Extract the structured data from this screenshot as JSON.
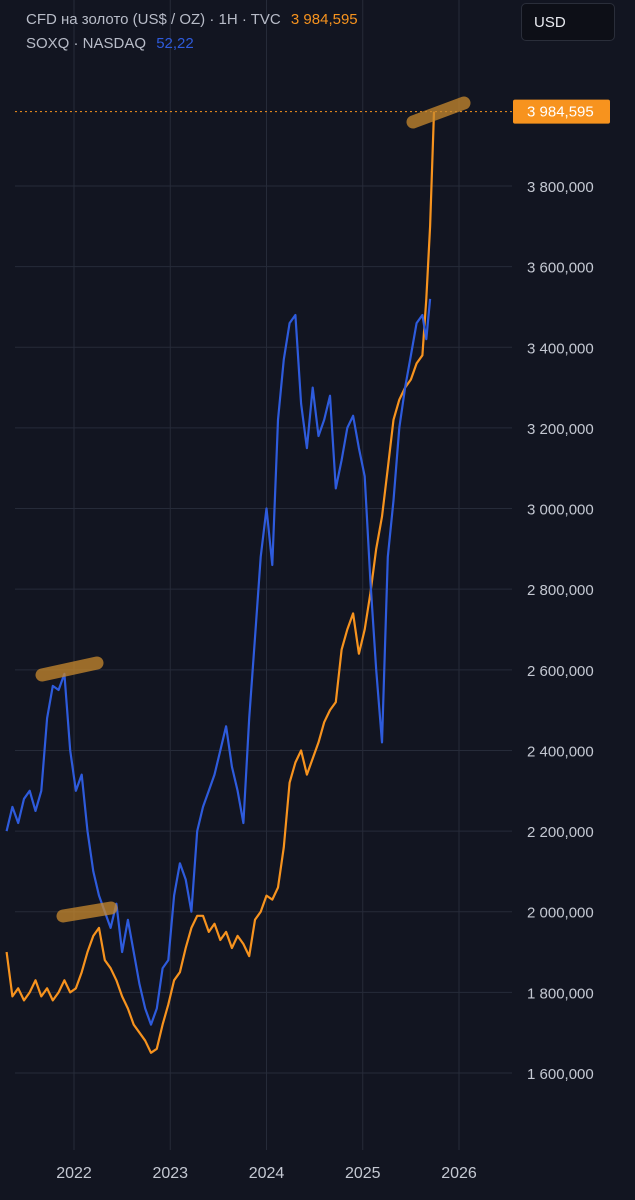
{
  "legend": {
    "gold": {
      "name": "CFD на золото (US$ / OZ) · 1H · TVC",
      "value": "3 984,595",
      "color": "#f7931e"
    },
    "soxq": {
      "name": "SOXQ · NASDAQ",
      "value": "52,22",
      "color": "#2e5bdc"
    }
  },
  "currency_button": {
    "label": "USD"
  },
  "price_label": "3 984,595",
  "chart_data": {
    "type": "line",
    "ylabels": [
      "3 800,000",
      "3 600,000",
      "3 400,000",
      "3 200,000",
      "3 000,000",
      "2 800,000",
      "2 600,000",
      "2 400,000",
      "2 200,000",
      "2 000,000",
      "1 800,000",
      "1 600,000"
    ],
    "y_ticks": [
      3800000,
      3600000,
      3400000,
      3200000,
      3000000,
      2800000,
      2600000,
      2400000,
      2200000,
      2000000,
      1800000,
      1600000
    ],
    "x_ticks": [
      "2022",
      "2023",
      "2024",
      "2025",
      "2026"
    ],
    "last_price": 3984595,
    "grid": true,
    "colors": {
      "gold": "#f7931e",
      "soxq": "#2e5bdc",
      "grid": "#262b39",
      "highlight": "#c98a2e"
    },
    "series": [
      {
        "name": "CFD на золото (US$ / OZ) · 1H · TVC",
        "color": "#f7931e",
        "x": [
          2021.3,
          2021.36,
          2021.42,
          2021.48,
          2021.54,
          2021.6,
          2021.66,
          2021.72,
          2021.78,
          2021.84,
          2021.9,
          2021.96,
          2022.02,
          2022.08,
          2022.14,
          2022.2,
          2022.26,
          2022.32,
          2022.38,
          2022.44,
          2022.5,
          2022.56,
          2022.62,
          2022.68,
          2022.74,
          2022.8,
          2022.86,
          2022.92,
          2022.98,
          2023.04,
          2023.1,
          2023.16,
          2023.22,
          2023.28,
          2023.34,
          2023.4,
          2023.46,
          2023.52,
          2023.58,
          2023.64,
          2023.7,
          2023.76,
          2023.82,
          2023.88,
          2023.94,
          2024.0,
          2024.06,
          2024.12,
          2024.18,
          2024.24,
          2024.3,
          2024.36,
          2024.42,
          2024.48,
          2024.54,
          2024.6,
          2024.66,
          2024.72,
          2024.78,
          2024.84,
          2024.9,
          2024.96,
          2025.02,
          2025.08,
          2025.14,
          2025.2,
          2025.26,
          2025.32,
          2025.38,
          2025.44,
          2025.5,
          2025.56,
          2025.62,
          2025.66,
          2025.7,
          2025.74
        ],
        "y": [
          1900000,
          1790000,
          1810000,
          1780000,
          1800000,
          1830000,
          1790000,
          1810000,
          1780000,
          1800000,
          1830000,
          1800000,
          1810000,
          1850000,
          1900000,
          1940000,
          1960000,
          1880000,
          1860000,
          1830000,
          1790000,
          1760000,
          1720000,
          1700000,
          1680000,
          1650000,
          1660000,
          1720000,
          1770000,
          1830000,
          1850000,
          1910000,
          1960000,
          1990000,
          1990000,
          1950000,
          1970000,
          1930000,
          1950000,
          1910000,
          1940000,
          1920000,
          1890000,
          1980000,
          2000000,
          2040000,
          2030000,
          2060000,
          2160000,
          2320000,
          2370000,
          2400000,
          2340000,
          2380000,
          2420000,
          2470000,
          2500000,
          2520000,
          2650000,
          2700000,
          2740000,
          2640000,
          2700000,
          2790000,
          2900000,
          2980000,
          3100000,
          3220000,
          3270000,
          3300000,
          3320000,
          3360000,
          3380000,
          3520000,
          3700000,
          3984595
        ]
      },
      {
        "name": "SOXQ · NASDAQ",
        "color": "#2e5bdc",
        "x": [
          2021.3,
          2021.36,
          2021.42,
          2021.48,
          2021.54,
          2021.6,
          2021.66,
          2021.72,
          2021.78,
          2021.84,
          2021.9,
          2021.96,
          2022.02,
          2022.08,
          2022.14,
          2022.2,
          2022.26,
          2022.32,
          2022.38,
          2022.44,
          2022.5,
          2022.56,
          2022.62,
          2022.68,
          2022.74,
          2022.8,
          2022.86,
          2022.92,
          2022.98,
          2023.04,
          2023.1,
          2023.16,
          2023.22,
          2023.28,
          2023.34,
          2023.4,
          2023.46,
          2023.52,
          2023.58,
          2023.64,
          2023.7,
          2023.76,
          2023.82,
          2023.88,
          2023.94,
          2024.0,
          2024.06,
          2024.12,
          2024.18,
          2024.24,
          2024.3,
          2024.36,
          2024.42,
          2024.48,
          2024.54,
          2024.6,
          2024.66,
          2024.72,
          2024.78,
          2024.84,
          2024.9,
          2024.96,
          2025.02,
          2025.08,
          2025.14,
          2025.2,
          2025.26,
          2025.32,
          2025.38,
          2025.44,
          2025.5,
          2025.56,
          2025.62,
          2025.66,
          2025.7
        ],
        "y": [
          2200000,
          2260000,
          2220000,
          2280000,
          2300000,
          2250000,
          2300000,
          2480000,
          2560000,
          2550000,
          2590000,
          2400000,
          2300000,
          2340000,
          2200000,
          2100000,
          2040000,
          2000000,
          1960000,
          2020000,
          1900000,
          1980000,
          1900000,
          1820000,
          1760000,
          1720000,
          1760000,
          1860000,
          1880000,
          2040000,
          2120000,
          2080000,
          2000000,
          2200000,
          2260000,
          2300000,
          2340000,
          2400000,
          2460000,
          2360000,
          2300000,
          2220000,
          2480000,
          2680000,
          2880000,
          3000000,
          2860000,
          3220000,
          3370000,
          3460000,
          3480000,
          3260000,
          3150000,
          3300000,
          3180000,
          3220000,
          3280000,
          3050000,
          3120000,
          3200000,
          3230000,
          3150000,
          3080000,
          2820000,
          2600000,
          2420000,
          2880000,
          3020000,
          3200000,
          3300000,
          3380000,
          3460000,
          3480000,
          3420000,
          3520000
        ]
      }
    ]
  }
}
